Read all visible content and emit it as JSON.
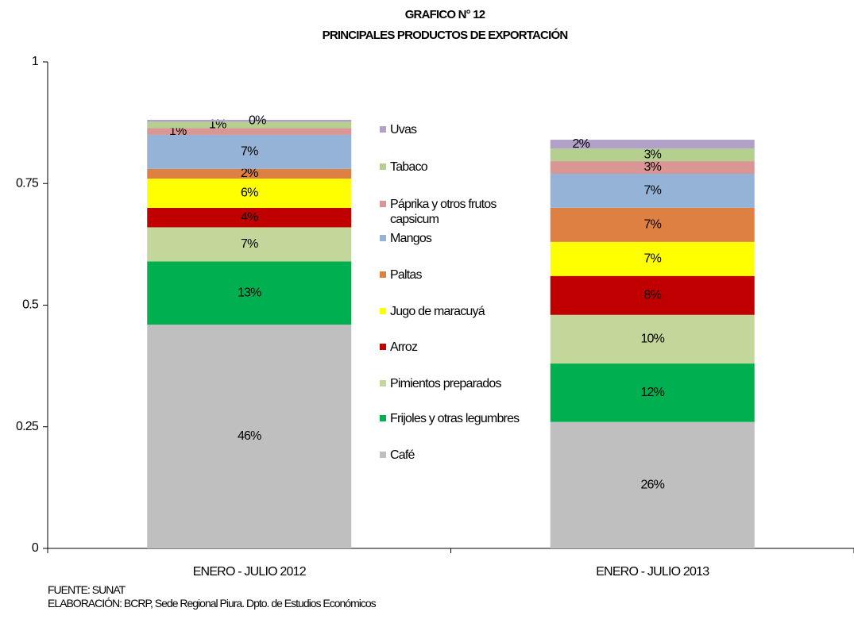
{
  "chart_data": {
    "type": "stacked_bar",
    "title": "GRAFICO N° 12",
    "subtitle": "PRINCIPALES PRODUCTOS DE EXPORTACIÓN",
    "categories": [
      "ENERO - JULIO 2012",
      "ENERO - JULIO 2013"
    ],
    "series": [
      {
        "name": "Café",
        "color": "#bfbfbf",
        "values": [
          0.46,
          0.26
        ],
        "value_labels": [
          "46%",
          "26%"
        ]
      },
      {
        "name": "Frijoles y otras legumbres",
        "color": "#00b050",
        "values": [
          0.13,
          0.12
        ],
        "value_labels": [
          "13%",
          "12%"
        ]
      },
      {
        "name": "Pimientos preparados",
        "color": "#c4d79b",
        "values": [
          0.07,
          0.1
        ],
        "value_labels": [
          "7%",
          "10%"
        ]
      },
      {
        "name": "Arroz",
        "color": "#c00000",
        "values": [
          0.04,
          0.08
        ],
        "value_labels": [
          "4%",
          "8%"
        ]
      },
      {
        "name": "Jugo de maracuyá",
        "color": "#ffff00",
        "values": [
          0.06,
          0.07
        ],
        "value_labels": [
          "6%",
          "7%"
        ]
      },
      {
        "name": "Paltas",
        "color": "#dd8041",
        "values": [
          0.02,
          0.07
        ],
        "value_labels": [
          "2%",
          "7%"
        ]
      },
      {
        "name": "Mangos",
        "color": "#95b3d7",
        "values": [
          0.07,
          0.07
        ],
        "value_labels": [
          "7%",
          "7%"
        ]
      },
      {
        "name": "Páprika y otros frutos capsicum",
        "color": "#da9694",
        "values": [
          0.014,
          0.026
        ],
        "value_labels": [
          "1%",
          "3%"
        ]
      },
      {
        "name": "Tabaco",
        "color": "#b5cf8e",
        "values": [
          0.013,
          0.026
        ],
        "value_labels": [
          "1%",
          "3%"
        ]
      },
      {
        "name": "Uvas",
        "color": "#b1a0c7",
        "values": [
          0.004,
          0.018
        ],
        "value_labels": [
          "0%",
          "2%"
        ]
      }
    ],
    "ylim": [
      0,
      1
    ],
    "yticks": [
      0,
      0.25,
      0.5,
      0.75,
      1
    ],
    "source": "FUENTE: SUNAT",
    "note": "ELABORACIÓN: BCRP, Sede Regional Piura. Dpto. de Estudios Económicos"
  }
}
